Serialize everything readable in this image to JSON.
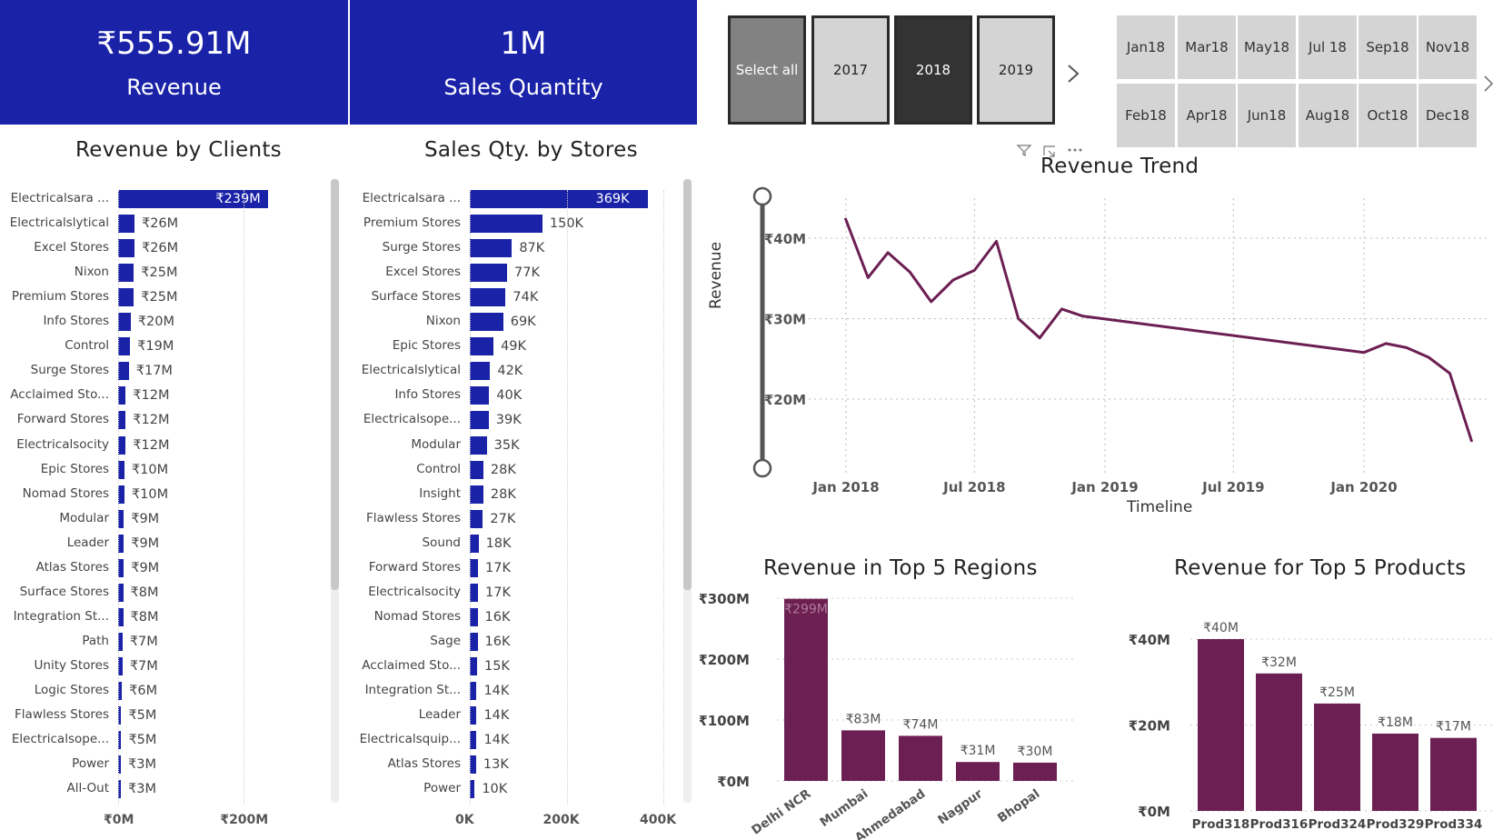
{
  "kpis": {
    "revenue": {
      "value": "₹555.91M",
      "label": "Revenue"
    },
    "quantity": {
      "value": "1M",
      "label": "Sales Quantity"
    }
  },
  "slicer_year": {
    "options": [
      "Select all",
      "2017",
      "2018",
      "2019"
    ],
    "selected": "2018"
  },
  "slicer_month": {
    "top_row": [
      "Jan 18",
      "Mar 18",
      "May 18",
      "Jul 18",
      "Sep 18",
      "Nov 18"
    ],
    "bottom_row": [
      "Feb 18",
      "Apr 18",
      "Jun 18",
      "Aug 18",
      "Oct 18",
      "Dec 18"
    ]
  },
  "visual_header_icons": [
    "filter-icon",
    "focus-mode-icon",
    "more-options-icon"
  ],
  "chart_data": [
    {
      "type": "bar",
      "orientation": "horizontal",
      "title": "Revenue by Clients",
      "categories": [
        "Electricalsara ...",
        "Electricalslytical",
        "Excel Stores",
        "Nixon",
        "Premium Stores",
        "Info Stores",
        "Control",
        "Surge Stores",
        "Acclaimed Sto...",
        "Forward Stores",
        "Electricalsocity",
        "Epic Stores",
        "Nomad Stores",
        "Modular",
        "Leader",
        "Atlas Stores",
        "Surface Stores",
        "Integration St...",
        "Path",
        "Unity Stores",
        "Logic Stores",
        "Flawless Stores",
        "Electricalsope...",
        "Power",
        "All-Out"
      ],
      "values": [
        239,
        26,
        26,
        25,
        25,
        20,
        19,
        17,
        12,
        12,
        12,
        10,
        10,
        9,
        9,
        9,
        8,
        8,
        7,
        7,
        6,
        5,
        5,
        3,
        3
      ],
      "labels": [
        "₹239M",
        "₹26M",
        "₹26M",
        "₹25M",
        "₹25M",
        "₹20M",
        "₹19M",
        "₹17M",
        "₹12M",
        "₹12M",
        "₹12M",
        "₹10M",
        "₹10M",
        "₹9M",
        "₹9M",
        "₹9M",
        "₹8M",
        "₹8M",
        "₹7M",
        "₹7M",
        "₹6M",
        "₹5M",
        "₹5M",
        "₹3M",
        "₹3M"
      ],
      "x_ticks": [
        "₹0M",
        "₹200M"
      ],
      "xlim": [
        0,
        240
      ],
      "color": "#1a22a8"
    },
    {
      "type": "bar",
      "orientation": "horizontal",
      "title": "Sales Qty. by Stores",
      "categories": [
        "Electricalsara ...",
        "Premium Stores",
        "Surge Stores",
        "Excel Stores",
        "Surface Stores",
        "Nixon",
        "Epic Stores",
        "Electricalslytical",
        "Info Stores",
        "Electricalsope...",
        "Modular",
        "Control",
        "Insight",
        "Flawless Stores",
        "Sound",
        "Forward Stores",
        "Electricalsocity",
        "Nomad Stores",
        "Sage",
        "Acclaimed Sto...",
        "Integration St...",
        "Leader",
        "Electricalsquip...",
        "Atlas Stores",
        "Power"
      ],
      "values": [
        369,
        150,
        87,
        77,
        74,
        69,
        49,
        42,
        40,
        39,
        35,
        28,
        28,
        27,
        18,
        17,
        17,
        16,
        16,
        15,
        14,
        14,
        14,
        13,
        10
      ],
      "labels": [
        "369K",
        "150K",
        "87K",
        "77K",
        "74K",
        "69K",
        "49K",
        "42K",
        "40K",
        "39K",
        "35K",
        "28K",
        "28K",
        "27K",
        "18K",
        "17K",
        "17K",
        "16K",
        "16K",
        "15K",
        "14K",
        "14K",
        "14K",
        "13K",
        "10K"
      ],
      "x_ticks": [
        "0K",
        "200K",
        "400K"
      ],
      "xlim": [
        0,
        400
      ],
      "color": "#1a22a8"
    },
    {
      "type": "line",
      "title": "Revenue Trend",
      "xlabel": "Timeline",
      "ylabel": "Revenue",
      "x": [
        "2017-12-31",
        "2018-02-01",
        "2018-03-01",
        "2018-04-01",
        "2018-05-01",
        "2018-06-01",
        "2018-07-01",
        "2018-08-01",
        "2018-09-01",
        "2018-10-01",
        "2018-11-01",
        "2018-12-01",
        "2020-01-01",
        "2020-02-01",
        "2020-03-01",
        "2020-04-01",
        "2020-05-01",
        "2020-06-01"
      ],
      "y": [
        42.5,
        35.1,
        38.2,
        35.8,
        32.1,
        34.8,
        36.0,
        39.6,
        30.0,
        27.6,
        31.2,
        30.3,
        25.8,
        26.9,
        26.4,
        25.2,
        23.2,
        14.7
      ],
      "x_ticks": [
        "Jan 2018",
        "Jul 2018",
        "Jan 2019",
        "Jul 2019",
        "Jan 2020"
      ],
      "y_ticks": [
        "₹20M",
        "₹30M",
        "₹40M"
      ],
      "ylim": [
        14,
        45
      ],
      "color": "#6b1f52"
    },
    {
      "type": "bar",
      "title": "Revenue in Top 5 Regions",
      "categories": [
        "Delhi NCR",
        "Mumbai",
        "Ahmedabad",
        "Nagpur",
        "Bhopal"
      ],
      "values": [
        299,
        83,
        74,
        31,
        30
      ],
      "labels": [
        "₹299M",
        "₹83M",
        "₹74M",
        "₹31M",
        "₹30M"
      ],
      "y_ticks": [
        "₹0M",
        "₹100M",
        "₹200M",
        "₹300M"
      ],
      "ylim": [
        0,
        300
      ],
      "color": "#6b1f52"
    },
    {
      "type": "bar",
      "title": "Revenue for Top 5 Products",
      "categories": [
        "Prod318",
        "Prod316",
        "Prod324",
        "Prod329",
        "Prod334"
      ],
      "values": [
        40,
        32,
        25,
        18,
        17
      ],
      "labels": [
        "₹40M",
        "₹32M",
        "₹25M",
        "₹18M",
        "₹17M"
      ],
      "y_ticks": [
        "₹0M",
        "₹20M",
        "₹40M"
      ],
      "ylim": [
        0,
        40
      ],
      "color": "#6b1f52"
    }
  ]
}
